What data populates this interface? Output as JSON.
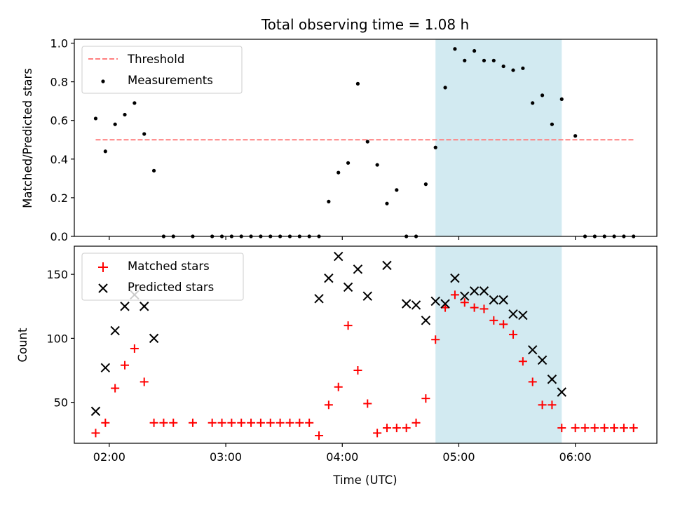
{
  "chart_data": [
    {
      "type": "scatter",
      "title": "Total observing time = 1.08 h",
      "ylabel": "Matched/Predicted stars",
      "xlabel": "",
      "xlim": [
        "01:42",
        "06:42"
      ],
      "ylim": [
        0,
        1.02
      ],
      "yticks": [
        0.0,
        0.2,
        0.4,
        0.6,
        0.8,
        1.0
      ],
      "ytick_labels": [
        "0.0",
        "0.2",
        "0.4",
        "0.6",
        "0.8",
        "1.0"
      ],
      "xticks": [
        "02:00",
        "03:00",
        "04:00",
        "05:00",
        "06:00"
      ],
      "highlight_span": {
        "from": "04:48",
        "to": "05:53",
        "color": "#add8e6"
      },
      "legend": {
        "placement": "top-left",
        "entries": [
          "Threshold",
          "Measurements"
        ]
      },
      "series": [
        {
          "name": "Threshold",
          "style": "dashed-line",
          "color": "#ff7f7f",
          "x": [
            "01:53",
            "06:30"
          ],
          "y": [
            0.5,
            0.5
          ]
        },
        {
          "name": "Measurements",
          "style": "dot",
          "color": "#000000",
          "x": [
            "01:53",
            "01:58",
            "02:03",
            "02:08",
            "02:13",
            "02:18",
            "02:23",
            "02:28",
            "02:33",
            "02:43",
            "02:53",
            "02:58",
            "03:03",
            "03:08",
            "03:13",
            "03:18",
            "03:23",
            "03:28",
            "03:33",
            "03:38",
            "03:43",
            "03:48",
            "03:53",
            "03:58",
            "04:03",
            "04:08",
            "04:13",
            "04:18",
            "04:23",
            "04:28",
            "04:33",
            "04:38",
            "04:43",
            "04:48",
            "04:53",
            "04:58",
            "05:03",
            "05:08",
            "05:13",
            "05:18",
            "05:23",
            "05:28",
            "05:33",
            "05:38",
            "05:43",
            "05:48",
            "05:53",
            "06:00",
            "06:05",
            "06:10",
            "06:15",
            "06:20",
            "06:25",
            "06:30"
          ],
          "y": [
            0.61,
            0.44,
            0.58,
            0.63,
            0.69,
            0.53,
            0.34,
            0.0,
            0.0,
            0.0,
            0.0,
            0.0,
            0.0,
            0.0,
            0.0,
            0.0,
            0.0,
            0.0,
            0.0,
            0.0,
            0.0,
            0.0,
            0.18,
            0.33,
            0.38,
            0.79,
            0.49,
            0.37,
            0.17,
            0.24,
            0.0,
            0.0,
            0.27,
            0.46,
            0.77,
            0.97,
            0.91,
            0.96,
            0.91,
            0.91,
            0.88,
            0.86,
            0.87,
            0.69,
            0.73,
            0.58,
            0.71,
            0.52,
            0.0,
            0.0,
            0.0,
            0.0,
            0.0,
            0.0
          ]
        }
      ]
    },
    {
      "type": "scatter",
      "title": "",
      "ylabel": "Count",
      "xlabel": "Time (UTC)",
      "xlim": [
        "01:42",
        "06:42"
      ],
      "ylim": [
        18,
        172
      ],
      "yticks": [
        50,
        100,
        150
      ],
      "ytick_labels": [
        "50",
        "100",
        "150"
      ],
      "xticks": [
        "02:00",
        "03:00",
        "04:00",
        "05:00",
        "06:00"
      ],
      "xtick_labels": [
        "02:00",
        "03:00",
        "04:00",
        "05:00",
        "06:00"
      ],
      "highlight_span": {
        "from": "04:48",
        "to": "05:53",
        "color": "#add8e6"
      },
      "legend": {
        "placement": "top-left",
        "entries": [
          "Matched stars",
          "Predicted stars"
        ]
      },
      "series": [
        {
          "name": "Matched stars",
          "marker": "plus",
          "color": "#ff0000",
          "x": [
            "01:53",
            "01:58",
            "02:03",
            "02:08",
            "02:13",
            "02:18",
            "02:23",
            "02:28",
            "02:33",
            "02:43",
            "02:53",
            "02:58",
            "03:03",
            "03:08",
            "03:13",
            "03:18",
            "03:23",
            "03:28",
            "03:33",
            "03:38",
            "03:43",
            "03:48",
            "03:53",
            "03:58",
            "04:03",
            "04:08",
            "04:13",
            "04:18",
            "04:23",
            "04:28",
            "04:33",
            "04:38",
            "04:43",
            "04:48",
            "04:53",
            "04:58",
            "05:03",
            "05:08",
            "05:13",
            "05:18",
            "05:23",
            "05:28",
            "05:33",
            "05:38",
            "05:43",
            "05:48",
            "05:53",
            "06:00",
            "06:05",
            "06:10",
            "06:15",
            "06:20",
            "06:25",
            "06:30"
          ],
          "y": [
            26,
            34,
            61,
            79,
            92,
            66,
            34,
            34,
            34,
            34,
            34,
            34,
            34,
            34,
            34,
            34,
            34,
            34,
            34,
            34,
            34,
            24,
            48,
            62,
            110,
            75,
            49,
            26,
            30,
            30,
            30,
            34,
            53,
            99,
            124,
            134,
            128,
            124,
            123,
            114,
            111,
            103,
            82,
            66,
            48,
            48,
            30,
            30,
            30,
            30,
            30,
            30,
            30,
            30
          ]
        },
        {
          "name": "Predicted stars",
          "marker": "x",
          "color": "#000000",
          "x": [
            "01:53",
            "01:58",
            "02:03",
            "02:08",
            "02:13",
            "02:18",
            "02:23",
            "03:48",
            "03:53",
            "03:58",
            "04:03",
            "04:08",
            "04:13",
            "04:23",
            "04:33",
            "04:38",
            "04:43",
            "04:48",
            "04:53",
            "04:58",
            "05:03",
            "05:08",
            "05:13",
            "05:18",
            "05:23",
            "05:28",
            "05:33",
            "05:38",
            "05:43",
            "05:48",
            "05:53"
          ],
          "y": [
            43,
            77,
            106,
            125,
            134,
            125,
            100,
            131,
            147,
            164,
            140,
            154,
            133,
            157,
            127,
            126,
            114,
            129,
            127,
            147,
            133,
            137,
            137,
            130,
            130,
            119,
            118,
            91,
            83,
            68,
            58
          ]
        }
      ]
    }
  ]
}
